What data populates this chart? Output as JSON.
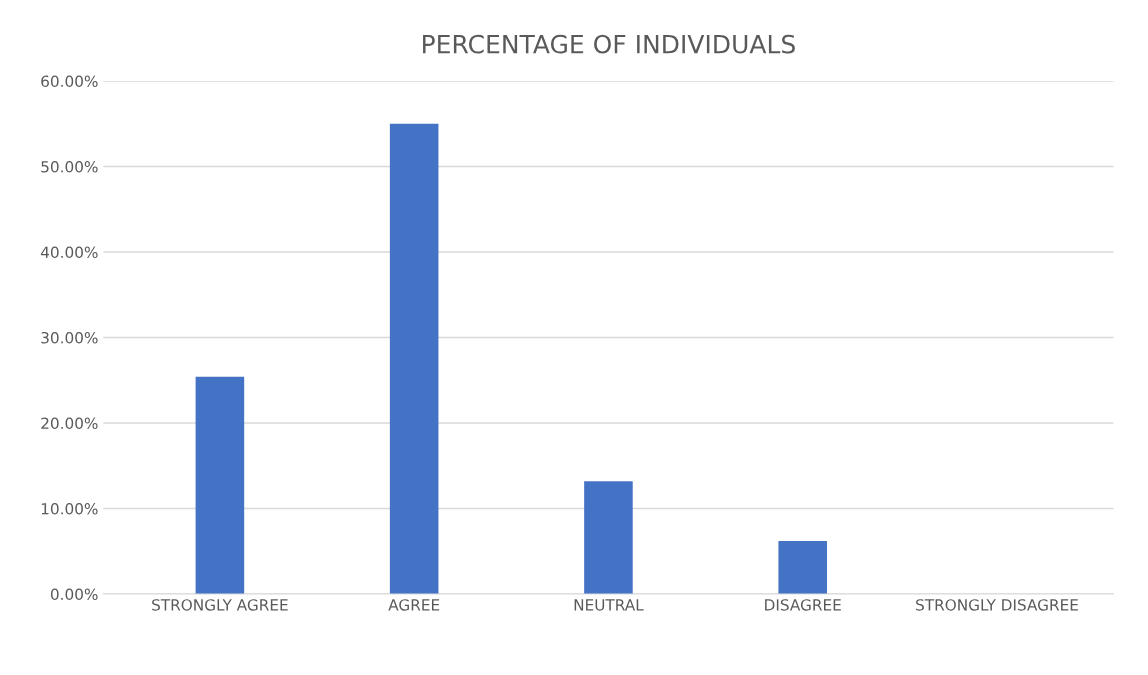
{
  "chart_data": {
    "type": "bar",
    "title": "PERCENTAGE OF INDIVIDUALS",
    "categories": [
      "STRONGLY AGREE",
      "AGREE",
      "NEUTRAL",
      "DISAGREE",
      "STRONGLY DISAGREE"
    ],
    "values": [
      0.254,
      0.55,
      0.132,
      0.062,
      0
    ],
    "color": "#4472c4",
    "ylim": [
      0,
      0.6
    ],
    "yticks": [
      {
        "value": 0,
        "label": "0.00%"
      },
      {
        "value": 0.1,
        "label": "10.00%"
      },
      {
        "value": 0.2,
        "label": "20.00%"
      },
      {
        "value": 0.3,
        "label": "30.00%"
      },
      {
        "value": 0.4,
        "label": "40.00%"
      },
      {
        "value": 0.5,
        "label": "50.00%"
      },
      {
        "value": 0.6,
        "label": "60.00%"
      }
    ],
    "grid": "y"
  }
}
